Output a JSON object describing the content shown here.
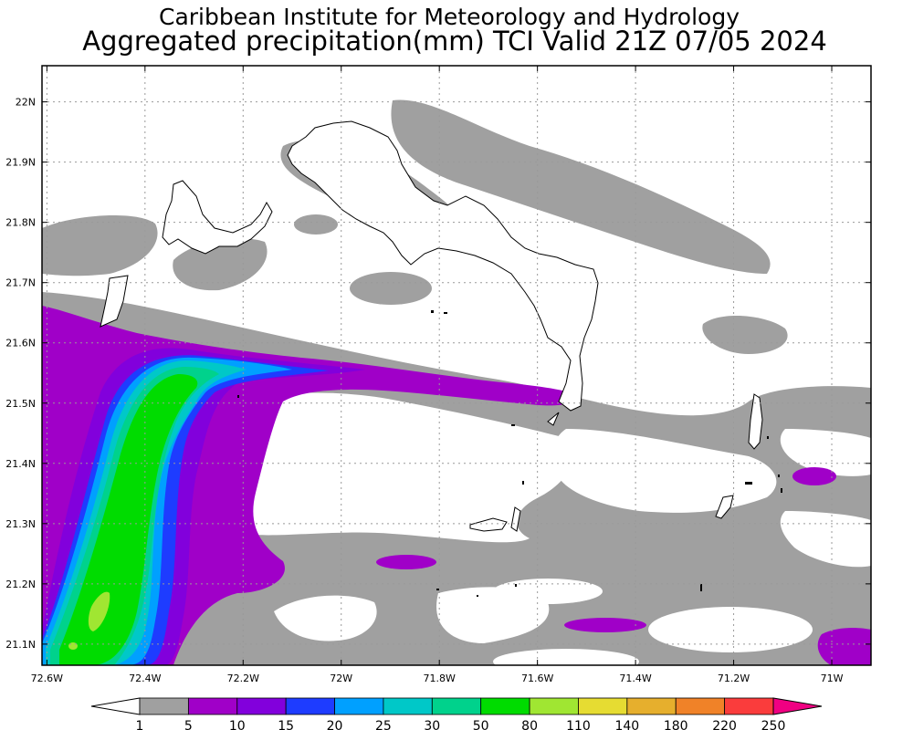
{
  "header": {
    "institute": "Caribbean Institute for Meteorology and Hydrology",
    "product": "Aggregated precipitation(mm) TCI Valid 21Z 07/05 2024"
  },
  "axes": {
    "lat_labels": [
      "22N",
      "21.9N",
      "21.8N",
      "21.7N",
      "21.6N",
      "21.5N",
      "21.4N",
      "21.3N",
      "21.2N",
      "21.1N"
    ],
    "lat_values": [
      22.0,
      21.9,
      21.8,
      21.7,
      21.6,
      21.5,
      21.4,
      21.3,
      21.2,
      21.1
    ],
    "lon_labels": [
      "72.6W",
      "72.4W",
      "72.2W",
      "72W",
      "71.8W",
      "71.6W",
      "71.4W",
      "71.2W",
      "71W"
    ],
    "lon_values": [
      -72.6,
      -72.4,
      -72.2,
      -72.0,
      -71.8,
      -71.6,
      -71.4,
      -71.2,
      -71.0
    ],
    "lon_range": [
      -72.61,
      -70.92
    ],
    "lat_range": [
      21.065,
      22.06
    ],
    "grid": "dotted"
  },
  "colorbar": {
    "levels": [
      "1",
      "5",
      "10",
      "15",
      "20",
      "25",
      "30",
      "50",
      "80",
      "110",
      "140",
      "180",
      "220",
      "250"
    ],
    "colors": [
      "#a0a0a0",
      "#a000c8",
      "#8200dc",
      "#1e3cff",
      "#00a0ff",
      "#00c8c8",
      "#00d28c",
      "#00dc00",
      "#a0e632",
      "#e6dc32",
      "#e6af2d",
      "#f08228",
      "#fa3c3c",
      "#f00082"
    ],
    "under_color": "#ffffff",
    "over_color": "#f00082"
  }
}
